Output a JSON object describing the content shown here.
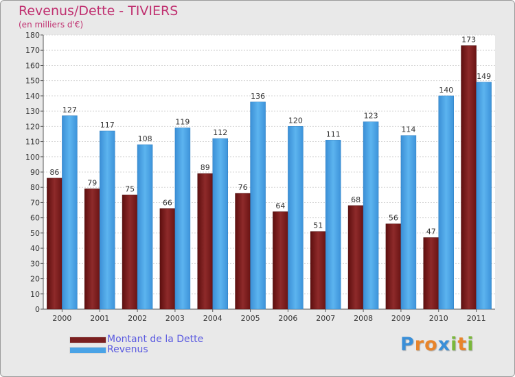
{
  "chart_data": {
    "type": "bar",
    "title": "Revenus/Dette - TIVIERS",
    "subtitle": "(en milliers d'€)",
    "categories": [
      "2000",
      "2001",
      "2002",
      "2003",
      "2004",
      "2005",
      "2006",
      "2007",
      "2008",
      "2009",
      "2010",
      "2011"
    ],
    "series": [
      {
        "name": "Montant de la Dette",
        "values": [
          86,
          79,
          75,
          66,
          89,
          76,
          64,
          51,
          68,
          56,
          47,
          173
        ],
        "color": "#7a1f1f"
      },
      {
        "name": "Revenus",
        "values": [
          127,
          117,
          108,
          119,
          112,
          136,
          120,
          111,
          123,
          114,
          140,
          149
        ],
        "color": "#4aa3e6"
      }
    ],
    "ylim": [
      0,
      180
    ],
    "yticks": [
      0,
      10,
      20,
      30,
      40,
      50,
      60,
      70,
      80,
      90,
      100,
      110,
      120,
      130,
      140,
      150,
      160,
      170,
      180
    ],
    "grid": true,
    "legend_position": "bottom-left"
  },
  "brand": {
    "letters": [
      "P",
      "r",
      "o",
      "x",
      "i",
      "t",
      "i"
    ],
    "colors": [
      "#3a8fd8",
      "#e8842a",
      "#e8842a",
      "#3a8fd8",
      "#7ab83a",
      "#e8842a",
      "#7ab83a"
    ]
  }
}
